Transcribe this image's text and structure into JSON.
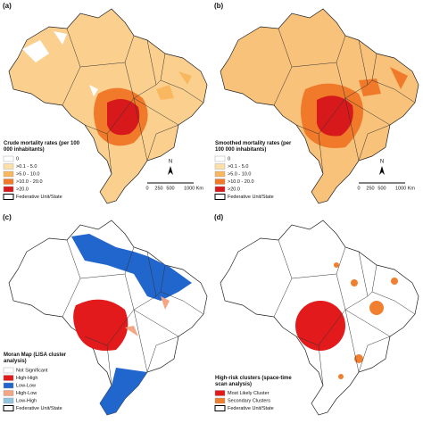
{
  "panels": [
    {
      "label": "(a)",
      "legend_title": "Crude mortality rates (per 100 000 inhabitants)",
      "legend_items": [
        {
          "label": "0",
          "color": "#ffffff"
        },
        {
          "label": ">0.1 - 5.0",
          "color": "#fde0a8"
        },
        {
          "label": ">5.0 - 10.0",
          "color": "#f9b860"
        },
        {
          "label": ">10.0 - 20.0",
          "color": "#f07a2a"
        },
        {
          "label": ">20.0",
          "color": "#d7191c"
        },
        {
          "label": "Federative Unit/State",
          "color": "#ffffff"
        }
      ],
      "north": "N",
      "scale": [
        "0",
        "250",
        "500",
        "1000 Km"
      ]
    },
    {
      "label": "(b)",
      "legend_title": "Smoothed mortality rates (per 100 000 inhabitants)",
      "legend_items": [
        {
          "label": "0",
          "color": "#ffffff"
        },
        {
          "label": ">0.1 - 5.0",
          "color": "#fde0a8"
        },
        {
          "label": ">5.0 - 10.0",
          "color": "#f9b860"
        },
        {
          "label": ">10.0 - 20.0",
          "color": "#f07a2a"
        },
        {
          "label": ">20.0",
          "color": "#d7191c"
        },
        {
          "label": "Federative Unit/State",
          "color": "#ffffff"
        }
      ],
      "north": "N",
      "scale": [
        "0",
        "250",
        "500",
        "1000 Km"
      ]
    },
    {
      "label": "(c)",
      "legend_title": "Moran Map (LISA cluster analysis)",
      "legend_items": [
        {
          "label": "Not Significant",
          "color": "#ffffff"
        },
        {
          "label": "High-High",
          "color": "#e31a1c"
        },
        {
          "label": "Low-Low",
          "color": "#2166cc"
        },
        {
          "label": "High-Low",
          "color": "#f4a582"
        },
        {
          "label": "Low-High",
          "color": "#92c5de"
        },
        {
          "label": "Federative Unit/State",
          "color": "#ffffff"
        }
      ]
    },
    {
      "label": "(d)",
      "legend_title": "High-risk clusters (space-time scan analysis)",
      "legend_items": [
        {
          "label": "Most Likely Cluster",
          "color": "#e31a1c"
        },
        {
          "label": "Secondary Clusters",
          "color": "#f08030"
        },
        {
          "label": "Federative Unit/State",
          "color": "#ffffff"
        }
      ]
    }
  ]
}
